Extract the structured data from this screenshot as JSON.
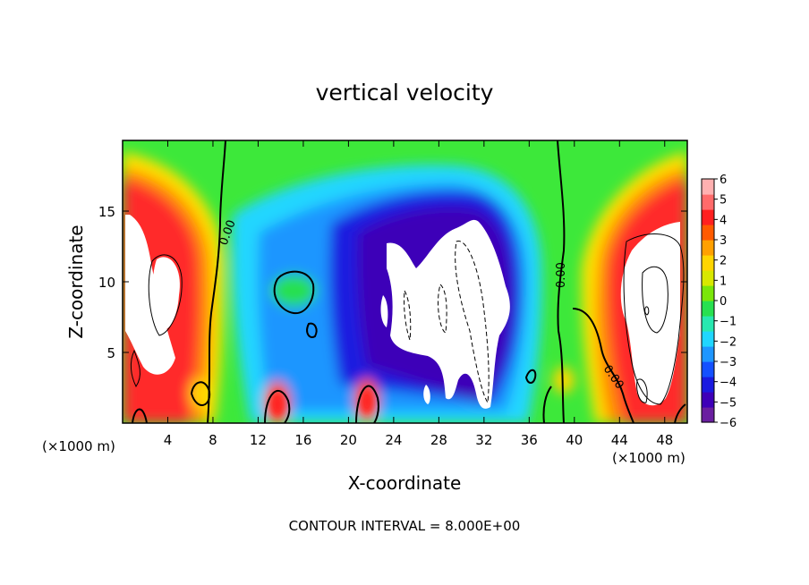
{
  "chart_data": {
    "type": "heatmap",
    "title": "vertical velocity",
    "xlabel": "X-coordinate",
    "ylabel": "Z-coordinate",
    "x_unit": "(×1000 m)",
    "x_unit_right": "(×1000 m)",
    "footer": "CONTOUR INTERVAL = 8.000E+00",
    "xlim": [
      0,
      50
    ],
    "ylim": [
      0,
      20
    ],
    "xticks": [
      4,
      8,
      12,
      16,
      20,
      24,
      28,
      32,
      36,
      40,
      44,
      48
    ],
    "yticks": [
      5,
      10,
      15
    ],
    "colorbar": {
      "levels": [
        6,
        5,
        4,
        3,
        2,
        1,
        0,
        -1,
        -2,
        -3,
        -4,
        -5,
        -6
      ],
      "min": -6,
      "max": 6,
      "colors": [
        "#6a1fa0",
        "#3e00b8",
        "#1a1ae0",
        "#1450ff",
        "#1e96ff",
        "#20d6ff",
        "#28e8b0",
        "#28e050",
        "#7ae60a",
        "#d8e800",
        "#ffd500",
        "#ffa000",
        "#ff5a00",
        "#ff2020",
        "#ff6a6a",
        "#ffb0b0"
      ]
    },
    "contour_labels": [
      "0.00",
      "0.00",
      "0.00"
    ],
    "grid": false
  }
}
